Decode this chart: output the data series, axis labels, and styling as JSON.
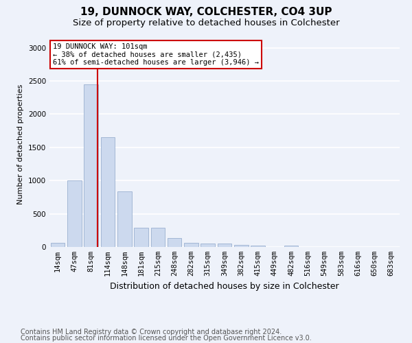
{
  "title1": "19, DUNNOCK WAY, COLCHESTER, CO4 3UP",
  "title2": "Size of property relative to detached houses in Colchester",
  "xlabel": "Distribution of detached houses by size in Colchester",
  "ylabel": "Number of detached properties",
  "footer1": "Contains HM Land Registry data © Crown copyright and database right 2024.",
  "footer2": "Contains public sector information licensed under the Open Government Licence v3.0.",
  "categories": [
    "14sqm",
    "47sqm",
    "81sqm",
    "114sqm",
    "148sqm",
    "181sqm",
    "215sqm",
    "248sqm",
    "282sqm",
    "315sqm",
    "349sqm",
    "382sqm",
    "415sqm",
    "449sqm",
    "482sqm",
    "516sqm",
    "549sqm",
    "583sqm",
    "616sqm",
    "650sqm",
    "683sqm"
  ],
  "values": [
    60,
    1000,
    2450,
    1650,
    840,
    290,
    290,
    130,
    60,
    55,
    55,
    30,
    20,
    0,
    25,
    0,
    0,
    0,
    0,
    0,
    0
  ],
  "bar_color": "#ccd9ee",
  "bar_edge_color": "#9ab0d0",
  "vline_color": "#cc0000",
  "vline_x": 2.4,
  "annotation_text": "19 DUNNOCK WAY: 101sqm\n← 38% of detached houses are smaller (2,435)\n61% of semi-detached houses are larger (3,946) →",
  "annotation_box_facecolor": "white",
  "annotation_box_edgecolor": "#cc0000",
  "ylim": [
    0,
    3100
  ],
  "yticks": [
    0,
    500,
    1000,
    1500,
    2000,
    2500,
    3000
  ],
  "bg_color": "#eef2fa",
  "plot_bg_color": "#eef2fa",
  "grid_color": "white",
  "title1_fontsize": 11,
  "title2_fontsize": 9.5,
  "xlabel_fontsize": 9,
  "ylabel_fontsize": 8,
  "tick_fontsize": 7.5,
  "ann_fontsize": 7.5,
  "footer_fontsize": 7
}
